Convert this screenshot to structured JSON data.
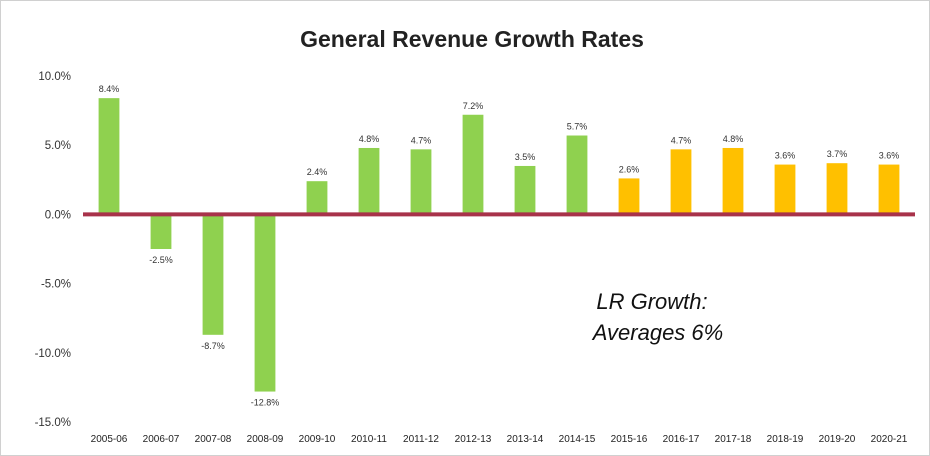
{
  "chart_data": {
    "type": "bar",
    "title": "General Revenue Growth Rates",
    "xlabel": "",
    "ylabel": "",
    "ylim": [
      -15,
      10
    ],
    "yticks": [
      10,
      5,
      0,
      -5,
      -10,
      -15
    ],
    "ytick_labels": [
      "10.0%",
      "5.0%",
      "0.0%",
      "-5.0%",
      "-10.0%",
      "-15.0%"
    ],
    "grid": false,
    "legend": "none",
    "categories": [
      "2005-06",
      "2006-07",
      "2007-08",
      "2008-09",
      "2009-10",
      "2010-11",
      "2011-12",
      "2012-13",
      "2013-14",
      "2014-15",
      "2015-16",
      "2016-17",
      "2017-18",
      "2018-19",
      "2019-20",
      "2020-21"
    ],
    "values": [
      8.4,
      -2.5,
      -8.7,
      -12.8,
      2.4,
      4.8,
      4.7,
      7.2,
      3.5,
      5.7,
      2.6,
      4.7,
      4.8,
      3.6,
      3.7,
      3.6
    ],
    "data_labels": [
      "8.4%",
      "-2.5%",
      "-8.7%",
      "-12.8%",
      "2.4%",
      "4.8%",
      "4.7%",
      "7.2%",
      "3.5%",
      "5.7%",
      "2.6%",
      "4.7%",
      "4.8%",
      "3.6%",
      "3.7%",
      "3.6%"
    ],
    "bar_colors": [
      "#8fd14f",
      "#8fd14f",
      "#8fd14f",
      "#8fd14f",
      "#8fd14f",
      "#8fd14f",
      "#8fd14f",
      "#8fd14f",
      "#8fd14f",
      "#8fd14f",
      "#ffc000",
      "#ffc000",
      "#ffc000",
      "#ffc000",
      "#ffc000",
      "#ffc000"
    ],
    "zero_line_color": "#a8324a",
    "annotation": [
      "LR Growth:",
      "Averages 6%"
    ]
  }
}
